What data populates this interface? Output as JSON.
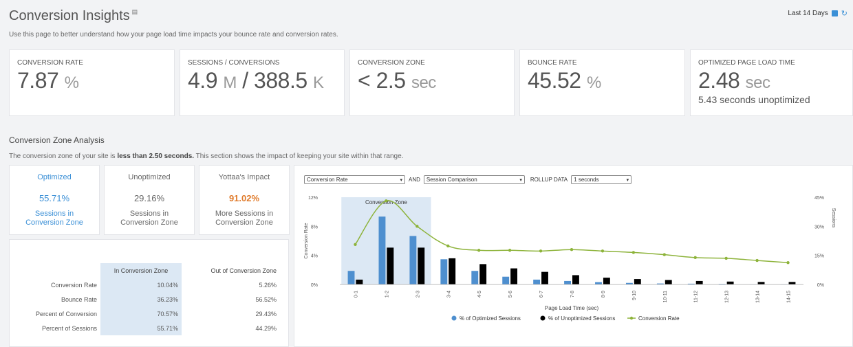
{
  "header": {
    "title": "Conversion Insights",
    "date_range": "Last 14 Days",
    "subtitle": "Use this page to better understand how your page load time impacts your bounce rate and conversion rates."
  },
  "kpis": [
    {
      "label": "CONVERSION RATE",
      "value": "7.87",
      "unit": "%",
      "sub": ""
    },
    {
      "label": "SESSIONS / CONVERSIONS",
      "value": "4.9",
      "unit": "M",
      "value2": "/ 388.5",
      "unit2": "K",
      "sub": ""
    },
    {
      "label": "CONVERSION ZONE",
      "value": "< 2.5",
      "unit": "sec",
      "sub": ""
    },
    {
      "label": "BOUNCE RATE",
      "value": "45.52",
      "unit": "%",
      "sub": ""
    },
    {
      "label": "OPTIMIZED PAGE LOAD TIME",
      "value": "2.48",
      "unit": "sec",
      "sub": "5.43 seconds unoptimized"
    }
  ],
  "zone": {
    "title": "Conversion Zone Analysis",
    "desc_pre": "The conversion zone of your site is ",
    "desc_bold": "less than 2.50 seconds.",
    "desc_post": " This section shows the impact of keeping your site within that range.",
    "boxes": [
      {
        "title": "Optimized",
        "value": "55.71%",
        "cap1": "Sessions in",
        "cap2": "Conversion Zone"
      },
      {
        "title": "Unoptimized",
        "value": "29.16%",
        "cap1": "Sessions in",
        "cap2": "Conversion Zone"
      },
      {
        "title": "Yottaa's Impact",
        "value": "91.02%",
        "cap1": "More Sessions in",
        "cap2": "Conversion Zone"
      }
    ]
  },
  "table": {
    "headers": [
      "In Conversion Zone",
      "Out of Conversion Zone"
    ],
    "rows": [
      {
        "label": "Conversion Rate",
        "in": "10.04%",
        "out": "5.26%"
      },
      {
        "label": "Bounce Rate",
        "in": "36.23%",
        "out": "56.52%"
      },
      {
        "label": "Percent of Conversion",
        "in": "70.57%",
        "out": "29.43%"
      },
      {
        "label": "Percent of Sessions",
        "in": "55.71%",
        "out": "44.29%"
      }
    ]
  },
  "controls": {
    "metric": "Conversion Rate",
    "and": "AND",
    "compare": "Session Comparison",
    "rollup_label": "ROLLUP DATA",
    "rollup": "1 seconds"
  },
  "colors": {
    "optimized": "#4e8fcf",
    "unoptimized": "#000000",
    "line": "#8db33a",
    "zone": "#dce8f4"
  },
  "chart_data": {
    "type": "bar",
    "categories": [
      "0-1",
      "1-2",
      "2-3",
      "3-4",
      "4-5",
      "5-6",
      "6-7",
      "7-8",
      "8-9",
      "9-10",
      "10-11",
      "11-12",
      "12-13",
      "13-14",
      "14-15"
    ],
    "series": [
      {
        "name": "% of Optimized Sessions",
        "axis": "right",
        "values": [
          7,
          35,
          25,
          13,
          7,
          4,
          2.5,
          1.8,
          1.2,
          0.8,
          0.5,
          0.4,
          0.3,
          0.2,
          0.2
        ]
      },
      {
        "name": "% of Unoptimized Sessions",
        "axis": "right",
        "values": [
          2.5,
          19,
          19,
          13.5,
          10.5,
          8.3,
          6.5,
          4.8,
          3.5,
          2.8,
          2.3,
          1.8,
          1.5,
          1.3,
          1.3
        ]
      },
      {
        "name": "Conversion Rate",
        "type": "line",
        "axis": "left",
        "values": [
          5.5,
          11.5,
          8,
          5.3,
          4.7,
          4.7,
          4.6,
          4.8,
          4.6,
          4.4,
          4.1,
          3.7,
          3.6,
          3.3,
          3.0
        ]
      }
    ],
    "zone_label": "Conversion Zone",
    "zone_range": [
      "0-1",
      "2-3"
    ],
    "xlabel": "Page Load Time (sec)",
    "ylabel": "Conversion Rate",
    "y2label": "Sessions",
    "ylim": [
      0,
      12
    ],
    "y2lim": [
      0,
      45
    ],
    "yticks": [
      "0%",
      "4%",
      "8%",
      "12%"
    ],
    "y2ticks": [
      "0%",
      "15%",
      "30%",
      "45%"
    ],
    "legend": "bottom"
  }
}
